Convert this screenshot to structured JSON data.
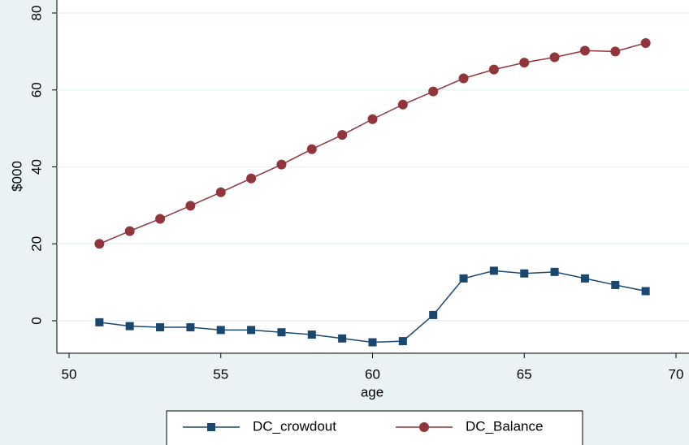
{
  "chart_data": {
    "type": "line",
    "xlabel": "age",
    "ylabel": "$000",
    "x": [
      51,
      52,
      53,
      54,
      55,
      56,
      57,
      58,
      59,
      60,
      61,
      62,
      63,
      64,
      65,
      66,
      67,
      68,
      69
    ],
    "series": [
      {
        "name": "DC_crowdout",
        "color": "#1a476f",
        "marker": "square",
        "values": [
          -0.4,
          -1.4,
          -1.7,
          -1.7,
          -2.4,
          -2.4,
          -3.0,
          -3.6,
          -4.6,
          -5.6,
          -5.3,
          1.5,
          11,
          13,
          12.3,
          12.7,
          11,
          9.3,
          7.7
        ]
      },
      {
        "name": "DC_Balance",
        "color": "#90353b",
        "marker": "circle",
        "values": [
          20,
          23.3,
          26.5,
          29.9,
          33.4,
          37,
          40.6,
          44.6,
          48.3,
          52.4,
          56.2,
          59.6,
          63,
          65.3,
          67.1,
          68.5,
          70.2,
          70,
          72.2
        ]
      }
    ],
    "xlim": [
      50,
      70
    ],
    "xticks": [
      50,
      55,
      60,
      65,
      70
    ],
    "ylim": [
      0,
      80
    ],
    "yticks": [
      0,
      20,
      40,
      60,
      80
    ],
    "grid": true
  }
}
